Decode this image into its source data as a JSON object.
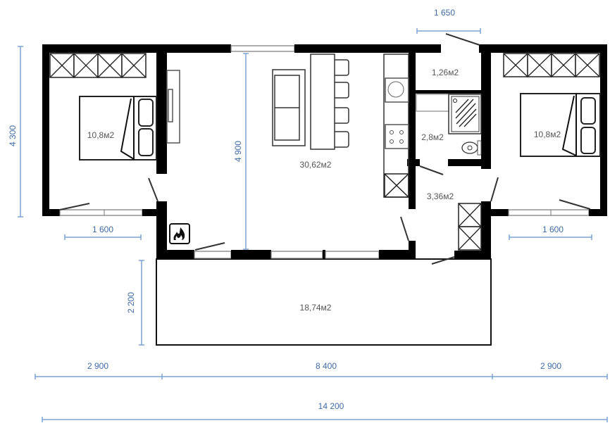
{
  "rooms": {
    "bedroom_left": "10,8м2",
    "living": "30,62м2",
    "storage": "1,26м2",
    "bathroom": "2,8м2",
    "hall": "3,36м2",
    "bedroom_right": "10,8м2",
    "terrace": "18,74м2"
  },
  "dimensions": {
    "total_width": "14 200",
    "left_width": "2 900",
    "middle_width": "8 400",
    "right_width": "2 900",
    "bedroom_depth": "4 300",
    "living_depth": "4 900",
    "terrace_depth": "2 200",
    "window_left": "1 600",
    "window_right": "1 600",
    "entrance": "1 650"
  },
  "icons": [
    "fireplace-icon",
    "wardrobe-icon",
    "bed-icon",
    "sofa-icon",
    "sink-icon",
    "hob-icon",
    "shower-icon",
    "toilet-icon"
  ]
}
